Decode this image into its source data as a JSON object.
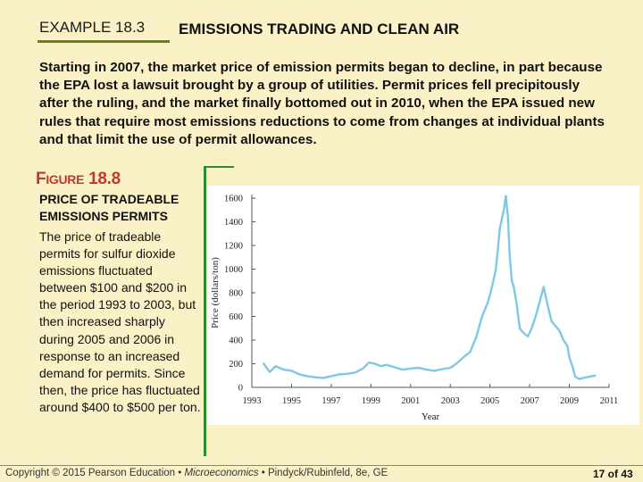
{
  "example_label": "EXAMPLE 18.3",
  "example_title": "EMISSIONS TRADING AND CLEAN AIR",
  "intro_text": "Starting in 2007, the market price of emission permits began to decline, in part because the EPA lost a lawsuit brought by a group of utilities. Permit prices fell precipitously after the ruling, and the market finally bottomed out in 2010, when the EPA issued new rules that require most emissions reductions to come from changes at individual plants and that limit the use of permit allowances.",
  "figure_label_prefix": "F",
  "figure_label_small": "IGURE",
  "figure_number": "18.8",
  "figure_title": "PRICE OF TRADEABLE EMISSIONS PERMITS",
  "figure_caption": "The price of tradeable permits for sulfur dioxide emissions fluctuated between $100 and $200 in the period 1993 to 2003, but then increased sharply during 2005 and 2006 in response to an increased demand for permits. Since then, the price has fluctuated around $400 to $500 per ton.",
  "chart_data": {
    "type": "line",
    "title": "",
    "xlabel": "Year",
    "ylabel": "Price (dollars/ton)",
    "xlim": [
      1993,
      2011
    ],
    "ylim": [
      0,
      1600
    ],
    "x_ticks": [
      "1993",
      "1995",
      "1997",
      "1999",
      "2001",
      "2003",
      "2005",
      "2007",
      "2009",
      "2011"
    ],
    "y_ticks": [
      "0",
      "200",
      "400",
      "600",
      "800",
      "1000",
      "1200",
      "1400",
      "1600"
    ],
    "grid": false,
    "colors": {
      "line": "#7ec8e3",
      "axis": "#555555"
    },
    "series": [
      {
        "name": "",
        "x": [
          1993.6,
          1993.9,
          1994.2,
          1994.6,
          1995.0,
          1995.4,
          1995.8,
          1996.2,
          1996.6,
          1997.0,
          1997.4,
          1997.8,
          1998.2,
          1998.6,
          1998.9,
          1999.2,
          1999.5,
          1999.8,
          2000.2,
          2000.6,
          2001.0,
          2001.4,
          2001.8,
          2002.2,
          2002.6,
          2003.0,
          2003.3,
          2003.7,
          2004.0,
          2004.3,
          2004.6,
          2004.9,
          2005.1,
          2005.3,
          2005.5,
          2005.7,
          2005.8,
          2005.9,
          2006.0,
          2006.1,
          2006.2,
          2006.35,
          2006.5,
          2006.7,
          2006.9,
          2007.1,
          2007.3,
          2007.5,
          2007.7,
          2007.9,
          2008.1,
          2008.3,
          2008.5,
          2008.7,
          2008.9,
          2009.0,
          2009.15,
          2009.3,
          2009.5,
          2009.7,
          2010.0,
          2010.3
        ],
        "values": [
          200,
          130,
          180,
          150,
          140,
          110,
          95,
          85,
          80,
          95,
          110,
          115,
          125,
          160,
          210,
          200,
          180,
          190,
          170,
          150,
          160,
          165,
          150,
          140,
          155,
          165,
          200,
          260,
          300,
          420,
          600,
          720,
          850,
          1000,
          1350,
          1500,
          1620,
          1450,
          1100,
          900,
          850,
          700,
          500,
          460,
          430,
          500,
          600,
          720,
          850,
          700,
          560,
          520,
          480,
          400,
          350,
          250,
          180,
          90,
          70,
          80,
          90,
          100
        ]
      }
    ]
  },
  "footer": {
    "copyright": "Copyright © 2015 Pearson Education • ",
    "book": "Microeconomics",
    "rest": " • Pindyck/Rubinfeld, 8e, GE",
    "page": "17 of 43"
  }
}
